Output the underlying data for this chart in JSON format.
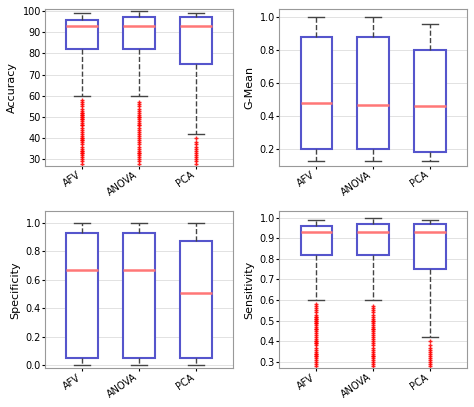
{
  "accuracy": {
    "AFV": {
      "q1": 82,
      "median": 93,
      "q3": 96,
      "whislo": 60,
      "whishi": 99,
      "fliers": [
        58,
        57,
        56,
        55,
        54,
        53,
        52,
        52,
        51,
        51,
        50,
        50,
        49,
        49,
        48,
        47,
        46,
        46,
        45,
        44,
        43,
        42,
        41,
        40,
        40,
        39,
        39,
        38,
        37,
        36,
        35,
        34,
        34,
        33,
        33,
        32,
        31,
        30,
        29,
        28
      ]
    },
    "ANOVA": {
      "q1": 82,
      "median": 93,
      "q3": 97,
      "whislo": 60,
      "whishi": 100,
      "fliers": [
        57,
        56,
        55,
        54,
        53,
        52,
        51,
        50,
        50,
        49,
        48,
        47,
        46,
        46,
        45,
        44,
        43,
        42,
        41,
        40,
        39,
        38,
        37,
        36,
        35,
        34,
        33,
        33,
        32,
        31,
        30,
        29,
        28
      ]
    },
    "PCA": {
      "q1": 75,
      "median": 93,
      "q3": 97,
      "whislo": 42,
      "whishi": 99,
      "fliers": [
        40,
        38,
        37,
        36,
        35,
        34,
        33,
        32,
        31,
        30,
        29,
        28
      ]
    }
  },
  "gmean": {
    "AFV": {
      "q1": 0.2,
      "median": 0.48,
      "q3": 0.88,
      "whislo": 0.13,
      "whishi": 1.0,
      "fliers": []
    },
    "ANOVA": {
      "q1": 0.2,
      "median": 0.47,
      "q3": 0.88,
      "whislo": 0.13,
      "whishi": 1.0,
      "fliers": []
    },
    "PCA": {
      "q1": 0.18,
      "median": 0.46,
      "q3": 0.8,
      "whislo": 0.13,
      "whishi": 0.96,
      "fliers": []
    }
  },
  "specificity": {
    "AFV": {
      "q1": 0.05,
      "median": 0.67,
      "q3": 0.93,
      "whislo": 0.0,
      "whishi": 1.0,
      "fliers": []
    },
    "ANOVA": {
      "q1": 0.05,
      "median": 0.67,
      "q3": 0.93,
      "whislo": 0.0,
      "whishi": 1.0,
      "fliers": []
    },
    "PCA": {
      "q1": 0.05,
      "median": 0.51,
      "q3": 0.87,
      "whislo": 0.0,
      "whishi": 1.0,
      "fliers": []
    }
  },
  "sensitivity": {
    "AFV": {
      "q1": 0.82,
      "median": 0.93,
      "q3": 0.96,
      "whislo": 0.6,
      "whishi": 0.99,
      "fliers": [
        0.58,
        0.57,
        0.56,
        0.55,
        0.54,
        0.53,
        0.52,
        0.52,
        0.51,
        0.51,
        0.5,
        0.5,
        0.49,
        0.49,
        0.48,
        0.47,
        0.46,
        0.46,
        0.45,
        0.44,
        0.43,
        0.42,
        0.41,
        0.4,
        0.4,
        0.39,
        0.39,
        0.38,
        0.37,
        0.36,
        0.35,
        0.34,
        0.34,
        0.33,
        0.33,
        0.32,
        0.31,
        0.3,
        0.29,
        0.28
      ]
    },
    "ANOVA": {
      "q1": 0.82,
      "median": 0.93,
      "q3": 0.97,
      "whislo": 0.6,
      "whishi": 1.0,
      "fliers": [
        0.57,
        0.56,
        0.55,
        0.54,
        0.53,
        0.52,
        0.51,
        0.5,
        0.5,
        0.49,
        0.48,
        0.47,
        0.46,
        0.46,
        0.45,
        0.44,
        0.43,
        0.42,
        0.41,
        0.4,
        0.39,
        0.38,
        0.37,
        0.36,
        0.35,
        0.34,
        0.33,
        0.33,
        0.32,
        0.31,
        0.3,
        0.29,
        0.28
      ]
    },
    "PCA": {
      "q1": 0.75,
      "median": 0.93,
      "q3": 0.97,
      "whislo": 0.42,
      "whishi": 0.99,
      "fliers": [
        0.4,
        0.38,
        0.37,
        0.36,
        0.35,
        0.34,
        0.33,
        0.32,
        0.31,
        0.3,
        0.29,
        0.28
      ]
    }
  },
  "categories": [
    "AFV",
    "ANOVA",
    "PCA"
  ],
  "box_color": "#5555cc",
  "median_color": "#ff7777",
  "flier_color": "#ff0000",
  "grid_color": "#dddddd",
  "accuracy_ylim": [
    27,
    101
  ],
  "accuracy_yticks": [
    30,
    40,
    50,
    60,
    70,
    80,
    90,
    100
  ],
  "gmean_ylim": [
    0.1,
    1.05
  ],
  "gmean_yticks": [
    0.2,
    0.4,
    0.6,
    0.8,
    1.0
  ],
  "specificity_ylim": [
    -0.02,
    1.08
  ],
  "specificity_yticks": [
    0.0,
    0.2,
    0.4,
    0.6,
    0.8,
    1.0
  ],
  "sensitivity_ylim": [
    0.27,
    1.03
  ],
  "sensitivity_yticks": [
    0.3,
    0.4,
    0.5,
    0.6,
    0.7,
    0.8,
    0.9,
    1.0
  ]
}
